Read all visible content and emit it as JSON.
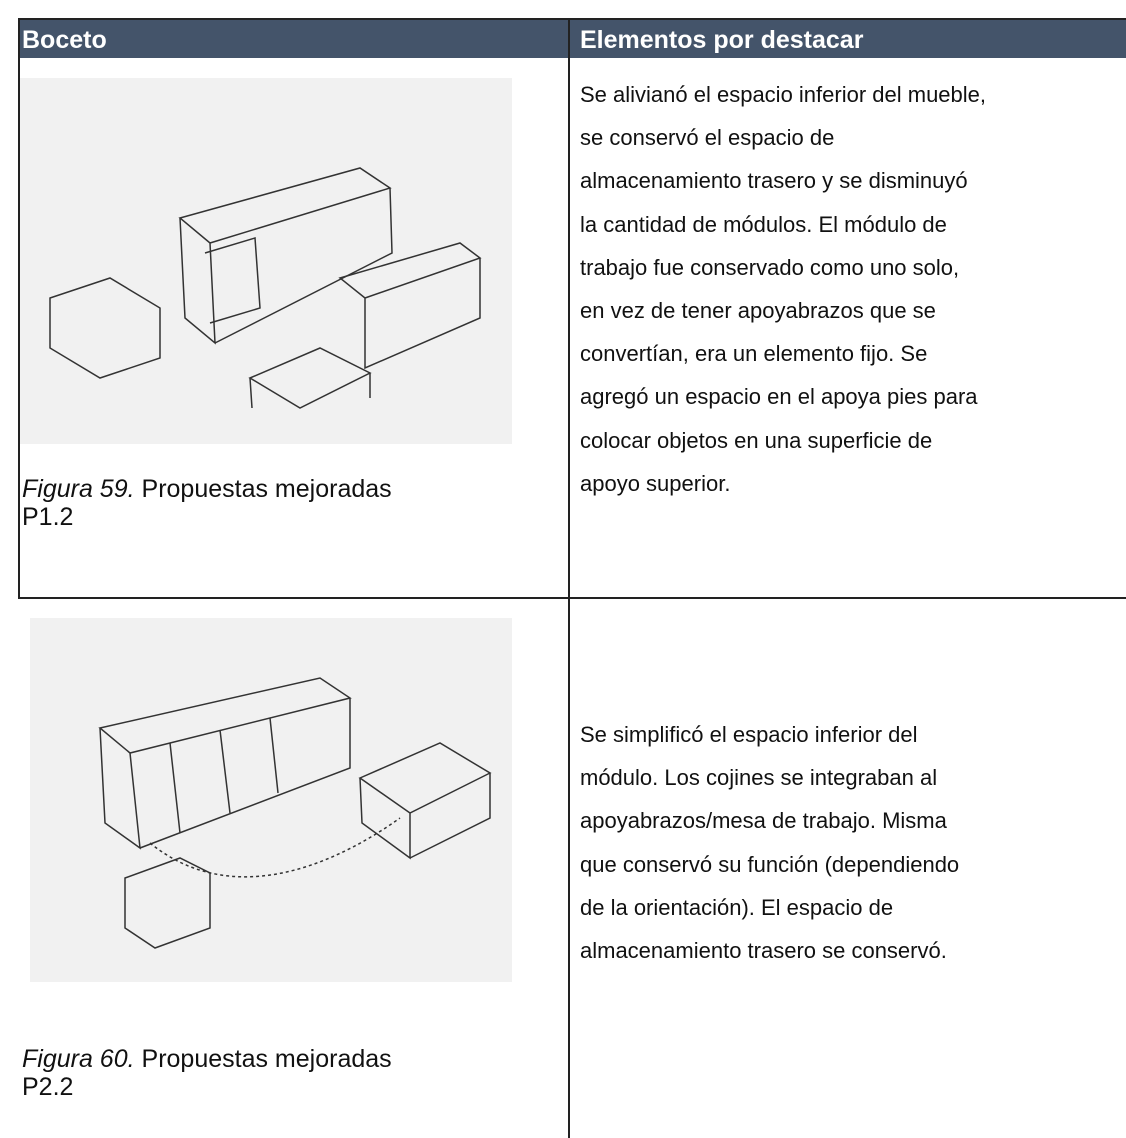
{
  "header": {
    "col1": "Boceto",
    "col2": "Elementos por destacar"
  },
  "rows": [
    {
      "caption": {
        "label": "Figura 59.",
        "text": "Propuestas mejoradas",
        "text2": "P1.2"
      },
      "description": [
        "Se alivianó el espacio inferior del mueble,",
        "se conservó el espacio de",
        "almacenamiento trasero y se disminuyó",
        "la cantidad de módulos. El módulo de",
        "trabajo fue conservado como uno solo,",
        "en vez de tener apoyabrazos que se",
        "convertían, era un elemento fijo. Se",
        "agregó un espacio en el apoya pies para",
        "colocar objetos en una superficie de",
        "apoyo superior."
      ]
    },
    {
      "caption": {
        "label": "Figura 60.",
        "text": "Propuestas mejoradas",
        "text2": "P2.2"
      },
      "description": [
        "Se simplificó el espacio inferior del",
        "módulo. Los cojines se integraban al",
        "apoyabrazos/mesa de trabajo. Misma",
        "que conservó su función (dependiendo",
        "de la orientación). El espacio de",
        "almacenamiento trasero se conservó."
      ]
    }
  ]
}
